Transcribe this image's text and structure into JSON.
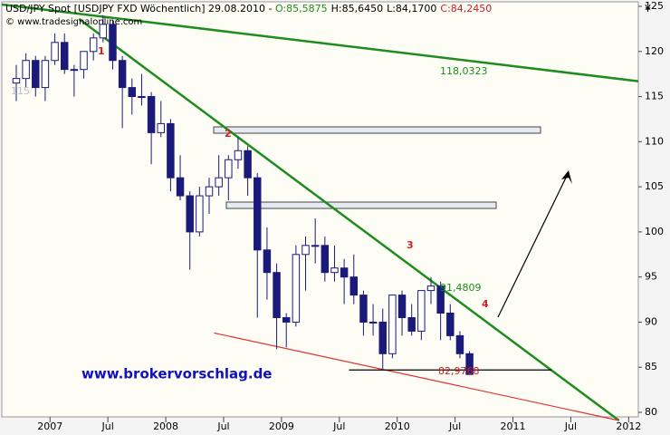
{
  "chart_data": {
    "type": "candlestick",
    "header": {
      "label": "USD/JPY Spot [USDJPY FXD  Wöchentlich] 29.08.2010 - ",
      "open": "O:85,5875",
      "high": "H:85,6450",
      "low": "L:84,1700",
      "close": "C:84,2450"
    },
    "source": "© www.tradesignalonline.com",
    "y_label": "¥",
    "watermark": "www.brokervorschlag.de",
    "x": [
      "2006-09",
      "2006-10",
      "2006-11",
      "2006-12",
      "2007-01",
      "2007-02",
      "2007-03",
      "2007-04",
      "2007-05",
      "2007-06",
      "2007-07",
      "2007-08",
      "2007-09",
      "2007-10",
      "2007-11",
      "2007-12",
      "2008-01",
      "2008-02",
      "2008-03",
      "2008-04",
      "2008-05",
      "2008-06",
      "2008-07",
      "2008-08",
      "2008-09",
      "2008-10",
      "2008-11",
      "2008-12",
      "2009-01",
      "2009-02",
      "2009-03",
      "2009-04",
      "2009-05",
      "2009-06",
      "2009-07",
      "2009-08",
      "2009-09",
      "2009-10",
      "2009-11",
      "2009-12",
      "2010-01",
      "2010-02",
      "2010-03",
      "2010-04",
      "2010-05",
      "2010-06",
      "2010-07",
      "2010-08"
    ],
    "series": [
      {
        "name": "USD/JPY",
        "up_color": "#ffffff",
        "down_color": "#1a1a7a",
        "values": [
          [
            116.5,
            118.5,
            114.5,
            117
          ],
          [
            117,
            119.8,
            116,
            119
          ],
          [
            119,
            119.5,
            115,
            116
          ],
          [
            116,
            119.5,
            114.5,
            119
          ],
          [
            119,
            122,
            118.5,
            121
          ],
          [
            121,
            122,
            117.5,
            118
          ],
          [
            118,
            118.5,
            115,
            118
          ],
          [
            118,
            120,
            117,
            120
          ],
          [
            120,
            122,
            119,
            121.5
          ],
          [
            121.5,
            124,
            121,
            123
          ],
          [
            123,
            123.5,
            118,
            119
          ],
          [
            119,
            119.5,
            111.5,
            116
          ],
          [
            116,
            117,
            113,
            115
          ],
          [
            115,
            117.5,
            114,
            115
          ],
          [
            115,
            115.5,
            107.5,
            111
          ],
          [
            111,
            114.5,
            110.5,
            112
          ],
          [
            112,
            112.5,
            104.5,
            106
          ],
          [
            106,
            108.5,
            103.5,
            104
          ],
          [
            104,
            104.5,
            95.8,
            100
          ],
          [
            100,
            105,
            99.5,
            104
          ],
          [
            104,
            106,
            102,
            105
          ],
          [
            105,
            108.5,
            104,
            106
          ],
          [
            106,
            108.5,
            103.5,
            108
          ],
          [
            108,
            110.5,
            107,
            109
          ],
          [
            109,
            109.5,
            104,
            106
          ],
          [
            106,
            106.5,
            90.5,
            98
          ],
          [
            98,
            100.5,
            92.5,
            95.5
          ],
          [
            95.5,
            96.5,
            87,
            90.5
          ],
          [
            90.5,
            91,
            87.2,
            90
          ],
          [
            90,
            98.5,
            89.5,
            97.5
          ],
          [
            97.5,
            99.5,
            93.5,
            98.5
          ],
          [
            98.5,
            101.5,
            96.5,
            98.5
          ],
          [
            98.5,
            99.5,
            94.5,
            95.5
          ],
          [
            95.5,
            98.5,
            94.5,
            96
          ],
          [
            96,
            97,
            92,
            95
          ],
          [
            95,
            97.5,
            92,
            93
          ],
          [
            93,
            93.5,
            88.5,
            90
          ],
          [
            90,
            92,
            88.5,
            90
          ],
          [
            90,
            91.5,
            84.8,
            86.5
          ],
          [
            86.5,
            93,
            86,
            93
          ],
          [
            93,
            93.5,
            88.5,
            90.5
          ],
          [
            90.5,
            92,
            88.5,
            89
          ],
          [
            89,
            93.5,
            88,
            93.5
          ],
          [
            93.5,
            95,
            92,
            94
          ],
          [
            94,
            94.5,
            88,
            91
          ],
          [
            91,
            92,
            88,
            88.5
          ],
          [
            88.5,
            89,
            86,
            86.5
          ],
          [
            86.5,
            86.8,
            84.2,
            84.2
          ]
        ]
      }
    ],
    "trendlines": [
      {
        "x": [
          "2006-08",
          "2012-02"
        ],
        "values": [
          125.2,
          116.7
        ],
        "color": "#1e8c1e"
      },
      {
        "x": [
          "2007-04",
          "2011-12"
        ],
        "values": [
          123.6,
          79.1
        ],
        "color": "#1e8c1e"
      },
      {
        "x": [
          "2008-06",
          "2011-12"
        ],
        "values": [
          88.8,
          79.1
        ],
        "color": "#e03030"
      },
      {
        "x": [
          "2009-08",
          "2011-05"
        ],
        "values": [
          84.7,
          84.7
        ],
        "color": "#000000"
      }
    ],
    "annotations": [
      "1",
      "2",
      "3",
      "4",
      "118,0323",
      "91,4809",
      "82,9768",
      "115"
    ],
    "xlim": [
      "2006-08",
      "2012-02"
    ],
    "ylim": [
      79.5,
      125.5
    ],
    "yticks": [
      80,
      85,
      90,
      95,
      100,
      105,
      110,
      115,
      120,
      125
    ],
    "xticks": [
      {
        "value": "2007-01",
        "label": "2007"
      },
      {
        "value": "2007-07",
        "label": "Jul"
      },
      {
        "value": "2008-01",
        "label": "2008"
      },
      {
        "value": "2008-07",
        "label": "Jul"
      },
      {
        "value": "2009-01",
        "label": "2009"
      },
      {
        "value": "2009-07",
        "label": "Jul"
      },
      {
        "value": "2010-01",
        "label": "2010"
      },
      {
        "value": "2010-07",
        "label": "Jul"
      },
      {
        "value": "2011-01",
        "label": "2011"
      },
      {
        "value": "2011-07",
        "label": "Jul"
      },
      {
        "value": "2012-01",
        "label": "2012"
      }
    ]
  }
}
